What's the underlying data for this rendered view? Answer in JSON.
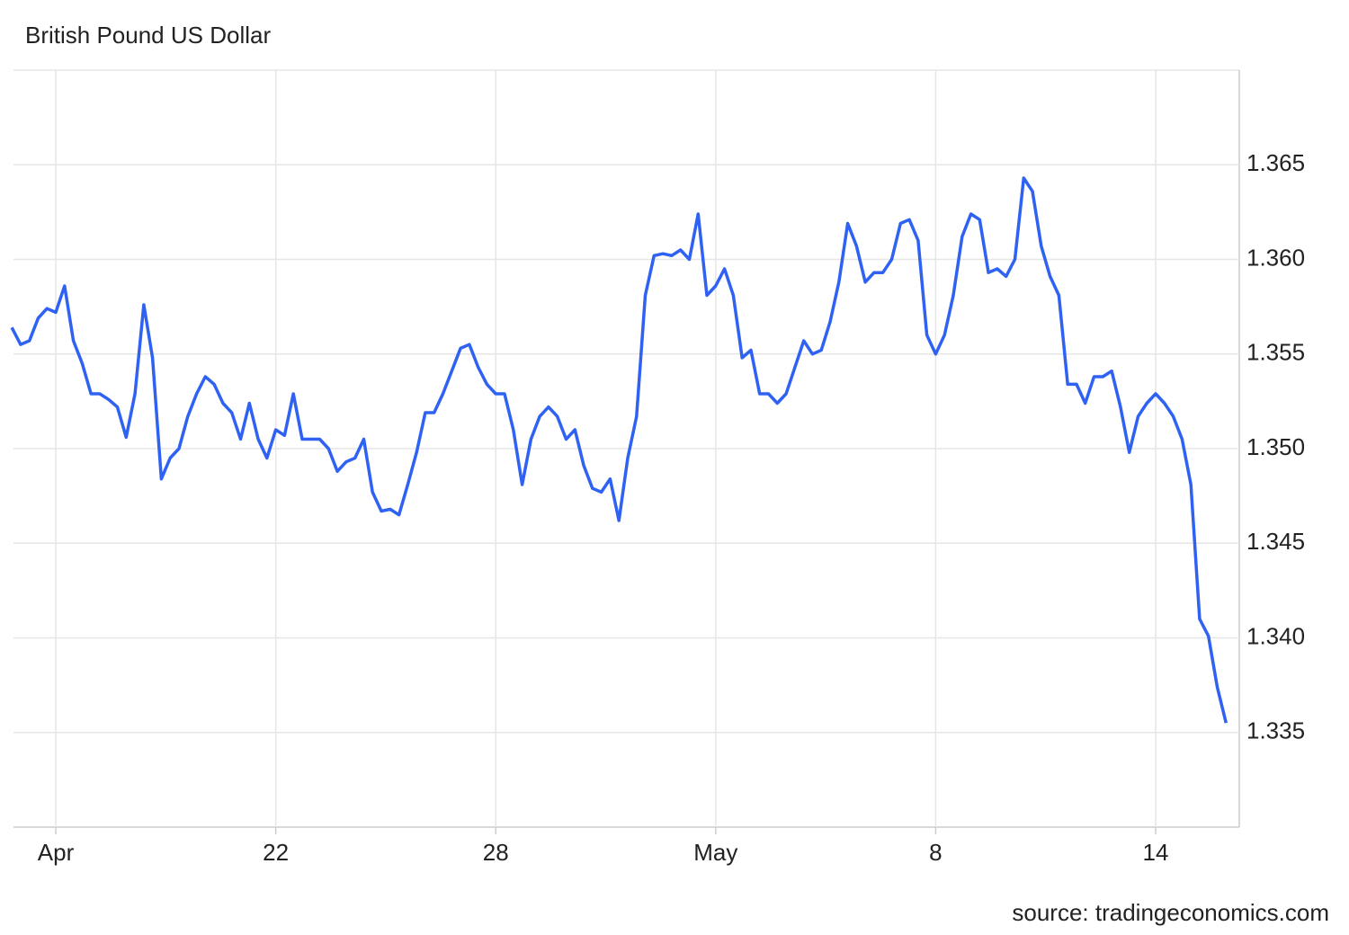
{
  "chart_data": {
    "type": "line",
    "title": "British Pound US Dollar",
    "source": "source: tradingeconomics.com",
    "categories": [
      null,
      null,
      null,
      null,
      null,
      "Apr",
      null,
      null,
      null,
      null,
      null,
      null,
      null,
      null,
      null,
      null,
      null,
      null,
      null,
      null,
      null,
      null,
      null,
      null,
      null,
      null,
      null,
      null,
      null,
      null,
      "22",
      null,
      null,
      null,
      null,
      null,
      null,
      null,
      null,
      null,
      null,
      null,
      null,
      null,
      null,
      null,
      null,
      null,
      null,
      null,
      null,
      null,
      null,
      null,
      null,
      "28",
      null,
      null,
      null,
      null,
      null,
      null,
      null,
      null,
      null,
      null,
      null,
      null,
      null,
      null,
      null,
      null,
      null,
      null,
      null,
      null,
      null,
      null,
      null,
      null,
      "May",
      null,
      null,
      null,
      null,
      null,
      null,
      null,
      null,
      null,
      null,
      null,
      null,
      null,
      null,
      null,
      null,
      null,
      null,
      null,
      null,
      null,
      null,
      null,
      null,
      "8",
      null,
      null,
      null,
      null,
      null,
      null,
      null,
      null,
      null,
      null,
      null,
      null,
      null,
      null,
      null,
      null,
      null,
      null,
      null,
      null,
      null,
      null,
      null,
      null,
      "14",
      null,
      null,
      null,
      null,
      null,
      null,
      null,
      null
    ],
    "series": [
      {
        "name": "GBPUSD",
        "color": "#2f62f3",
        "values": [
          1.3564,
          1.3555,
          1.3557,
          1.3569,
          1.3574,
          1.3572,
          1.3586,
          1.3557,
          1.3545,
          1.3529,
          1.3529,
          1.3526,
          1.3522,
          1.3506,
          1.3529,
          1.3576,
          1.3548,
          1.3484,
          1.3495,
          1.35,
          1.3517,
          1.3529,
          1.3538,
          1.3534,
          1.3524,
          1.3519,
          1.3505,
          1.3524,
          1.3505,
          1.3495,
          1.351,
          1.3507,
          1.3529,
          1.3505,
          1.3505,
          1.3505,
          1.35,
          1.3488,
          1.3493,
          1.3495,
          1.3505,
          1.3477,
          1.3467,
          1.3468,
          1.3465,
          1.3481,
          1.3498,
          1.3519,
          1.3519,
          1.3529,
          1.3541,
          1.3553,
          1.3555,
          1.3543,
          1.3534,
          1.3529,
          1.3529,
          1.351,
          1.3481,
          1.3505,
          1.3517,
          1.3522,
          1.3517,
          1.3505,
          1.351,
          1.3491,
          1.3479,
          1.3477,
          1.3484,
          1.3462,
          1.3495,
          1.3517,
          1.3581,
          1.3602,
          1.3603,
          1.3602,
          1.3605,
          1.36,
          1.3624,
          1.3581,
          1.3586,
          1.3595,
          1.3581,
          1.3548,
          1.3552,
          1.3529,
          1.3529,
          1.3524,
          1.3529,
          1.3543,
          1.3557,
          1.355,
          1.3552,
          1.3567,
          1.3588,
          1.3619,
          1.3607,
          1.3588,
          1.3593,
          1.3593,
          1.36,
          1.3619,
          1.3621,
          1.361,
          1.356,
          1.355,
          1.356,
          1.3581,
          1.3612,
          1.3624,
          1.3621,
          1.3593,
          1.3595,
          1.3591,
          1.36,
          1.3643,
          1.3636,
          1.3607,
          1.3591,
          1.3581,
          1.3534,
          1.3534,
          1.3524,
          1.3538,
          1.3538,
          1.3541,
          1.3522,
          1.3498,
          1.3517,
          1.3524,
          1.3529,
          1.3524,
          1.3517,
          1.3505,
          1.3481,
          1.341,
          1.3401,
          1.3374,
          1.3355
        ]
      }
    ],
    "ylim": [
      1.33,
      1.37
    ],
    "yticks": [
      1.335,
      {
        "value": 1.34,
        "label": "1.340"
      },
      1.345,
      {
        "value": 1.35,
        "label": "1.350"
      },
      1.355,
      {
        "value": 1.36,
        "label": "1.360"
      },
      1.365
    ],
    "grid": true
  }
}
